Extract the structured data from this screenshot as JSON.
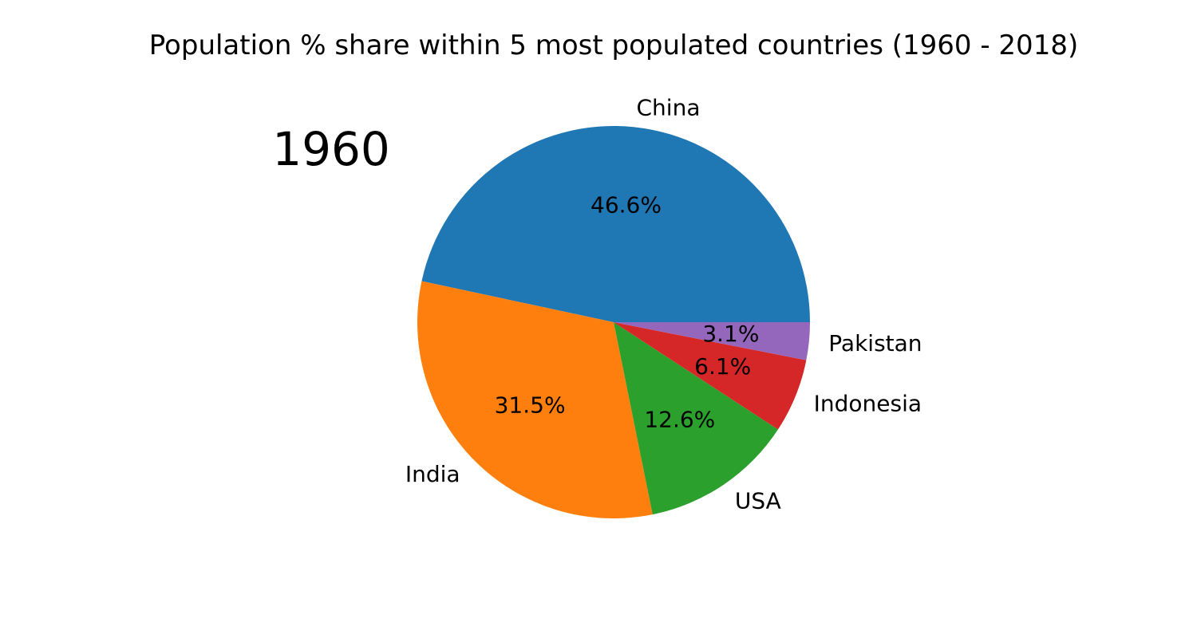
{
  "chart_data": {
    "type": "pie",
    "title": "Population % share within 5 most populated countries (1960 - 2018)",
    "year_label": "1960",
    "slices": [
      {
        "label": "China",
        "value": 46.6,
        "pct_text": "46.6%",
        "color": "#1f77b4"
      },
      {
        "label": "India",
        "value": 31.5,
        "pct_text": "31.5%",
        "color": "#ff7f0e"
      },
      {
        "label": "USA",
        "value": 12.6,
        "pct_text": "12.6%",
        "color": "#2ca02c"
      },
      {
        "label": "Indonesia",
        "value": 6.1,
        "pct_text": "6.1%",
        "color": "#d62728"
      },
      {
        "label": "Pakistan",
        "value": 3.1,
        "pct_text": "3.1%",
        "color": "#9467bd"
      }
    ],
    "start_angle_deg": 0,
    "direction": "counterclockwise"
  }
}
